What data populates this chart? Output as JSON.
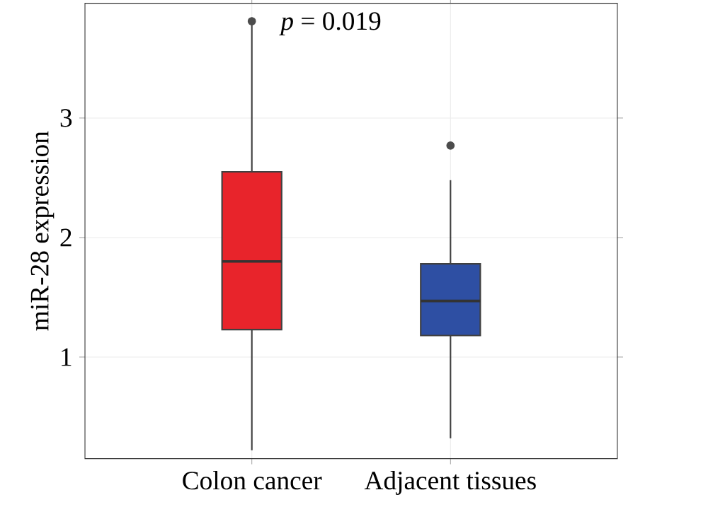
{
  "chart_data": {
    "type": "box",
    "ylabel": "miR-28 expression",
    "categories": [
      "Colon cancer",
      "Adjacent tissues"
    ],
    "boxes": [
      {
        "low": 0.22,
        "q1": 1.23,
        "median": 1.8,
        "q3": 2.55,
        "high": 3.8,
        "outliers": [
          3.81
        ]
      },
      {
        "low": 0.32,
        "q1": 1.18,
        "median": 1.47,
        "q3": 1.78,
        "high": 2.48,
        "outliers": [
          2.77
        ]
      }
    ],
    "colors": [
      "#e8242b",
      "#2e4fa3"
    ],
    "ylim": [
      0.15,
      3.96
    ],
    "yticks": [
      1,
      2,
      3
    ],
    "grid": true,
    "annotations": [
      "*p* = 0.019"
    ]
  }
}
